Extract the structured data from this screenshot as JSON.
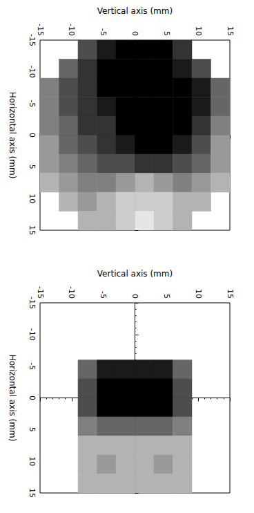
{
  "chart_data": [
    {
      "type": "heatmap",
      "xlabel": "Vertical axis (mm)",
      "ylabel": "Horizontal axis (mm)",
      "xlim": [
        -15,
        15
      ],
      "ylim": [
        -15,
        15
      ],
      "xticks": [
        -15,
        -10,
        -5,
        0,
        5,
        10,
        15
      ],
      "yticks": [
        -15,
        -10,
        -5,
        0,
        5,
        10,
        15
      ],
      "grid": false,
      "x": [
        -13.5,
        -10.5,
        -7.5,
        -4.5,
        -1.5,
        1.5,
        4.5,
        7.5,
        10.5,
        13.5
      ],
      "y": [
        -13.5,
        -10.5,
        -7.5,
        -4.5,
        -1.5,
        1.5,
        4.5,
        7.5,
        10.5,
        13.5
      ],
      "cells": [
        [
          null,
          null,
          7,
          9,
          10,
          10,
          10,
          8,
          null,
          null
        ],
        [
          null,
          6,
          8,
          10,
          10,
          10,
          10,
          9,
          7,
          null
        ],
        [
          5,
          7,
          8,
          10,
          10,
          10,
          10,
          10,
          9,
          6
        ],
        [
          5,
          7,
          8,
          9,
          10,
          10,
          10,
          10,
          9,
          6
        ],
        [
          5,
          6,
          8,
          8,
          10,
          10,
          10,
          10,
          8,
          5
        ],
        [
          4,
          6,
          7,
          8,
          9,
          10,
          10,
          9,
          7,
          4
        ],
        [
          4,
          5,
          6,
          7,
          7,
          8,
          8,
          7,
          6,
          4
        ],
        [
          3,
          4,
          5,
          5,
          4,
          3,
          4,
          5,
          4,
          3
        ],
        [
          null,
          3,
          4,
          3,
          2,
          2,
          2,
          3,
          3,
          null
        ],
        [
          null,
          null,
          3,
          3,
          2,
          1,
          2,
          3,
          null,
          null
        ]
      ]
    },
    {
      "type": "heatmap",
      "xlabel": "Vertical axis (mm)",
      "ylabel": "Horizontal axis (mm)",
      "xlim": [
        -15,
        15
      ],
      "ylim": [
        -15,
        15
      ],
      "xticks": [
        -15,
        -10,
        -5,
        0,
        5,
        10,
        15
      ],
      "yticks": [
        -15,
        -10,
        -5,
        0,
        5,
        10,
        15
      ],
      "grid": false,
      "x": [
        -7.5,
        -4.5,
        -1.5,
        1.5,
        4.5,
        7.5
      ],
      "y": [
        -4.5,
        -1.5,
        1.5,
        4.5,
        7.5,
        10.5,
        13.5
      ],
      "cells": [
        [
          6,
          9,
          9,
          9,
          9,
          6
        ],
        [
          7,
          10,
          10,
          10,
          10,
          7
        ],
        [
          7,
          10,
          10,
          10,
          10,
          7
        ],
        [
          5,
          6,
          6,
          6,
          6,
          5
        ],
        [
          3,
          3,
          3,
          3,
          3,
          3
        ],
        [
          3,
          4,
          3,
          3,
          4,
          3
        ],
        [
          3,
          3,
          3,
          3,
          3,
          3
        ]
      ]
    }
  ]
}
